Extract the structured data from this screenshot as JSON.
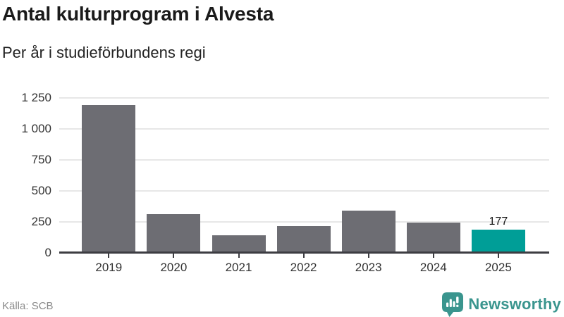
{
  "header": {
    "title": "Antal kulturprogram i Alvesta",
    "subtitle": "Per år i studieförbundens regi"
  },
  "chart_data": {
    "type": "bar",
    "title": "Antal kulturprogram i Alvesta",
    "subtitle": "Per år i studieförbundens regi",
    "categories": [
      "2019",
      "2020",
      "2021",
      "2022",
      "2023",
      "2024",
      "2025"
    ],
    "values": [
      1180,
      300,
      130,
      205,
      328,
      232,
      177
    ],
    "value_labels": [
      null,
      null,
      null,
      null,
      null,
      null,
      "177"
    ],
    "xlabel": "",
    "ylabel": "",
    "ylim": [
      0,
      1250
    ],
    "yticks": [
      0,
      250,
      500,
      750,
      1000,
      1250
    ],
    "ytick_labels": [
      "0",
      "250",
      "500",
      "750",
      "1 000",
      "1 250"
    ],
    "grid": true,
    "legend": "none",
    "bar_color": "#6d6d73",
    "highlight_color": "#009e97",
    "highlight_index": 6
  },
  "footer": {
    "source": "Källa: SCB",
    "brand": "Newsworthy",
    "brand_color": "#3a958e"
  }
}
